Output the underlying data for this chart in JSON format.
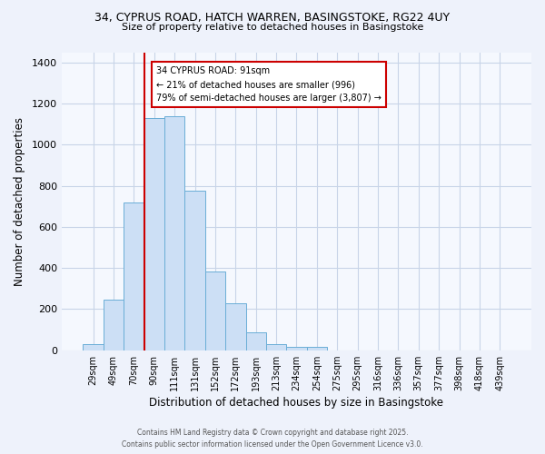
{
  "title_line1": "34, CYPRUS ROAD, HATCH WARREN, BASINGSTOKE, RG22 4UY",
  "title_line2": "Size of property relative to detached houses in Basingstoke",
  "xlabel": "Distribution of detached houses by size in Basingstoke",
  "ylabel": "Number of detached properties",
  "categories": [
    "29sqm",
    "49sqm",
    "70sqm",
    "90sqm",
    "111sqm",
    "131sqm",
    "152sqm",
    "172sqm",
    "193sqm",
    "213sqm",
    "234sqm",
    "254sqm",
    "275sqm",
    "295sqm",
    "316sqm",
    "336sqm",
    "357sqm",
    "377sqm",
    "398sqm",
    "418sqm",
    "439sqm"
  ],
  "values": [
    30,
    245,
    720,
    1130,
    1140,
    775,
    385,
    230,
    85,
    30,
    18,
    15,
    0,
    0,
    0,
    0,
    0,
    0,
    0,
    0,
    0
  ],
  "bar_color": "#ccdff5",
  "bar_edge_color": "#6aaed6",
  "vline_color": "#cc0000",
  "annotation_title": "34 CYPRUS ROAD: 91sqm",
  "annotation_line2": "← 21% of detached houses are smaller (996)",
  "annotation_line3": "79% of semi-detached houses are larger (3,807) →",
  "annotation_box_color": "#ffffff",
  "annotation_edge_color": "#cc0000",
  "ylim": [
    0,
    1450
  ],
  "yticks": [
    0,
    200,
    400,
    600,
    800,
    1000,
    1200,
    1400
  ],
  "footer_line1": "Contains HM Land Registry data © Crown copyright and database right 2025.",
  "footer_line2": "Contains public sector information licensed under the Open Government Licence v3.0.",
  "bg_color": "#eef2fb",
  "plot_bg_color": "#f5f8fe",
  "grid_color": "#c8d4e8"
}
